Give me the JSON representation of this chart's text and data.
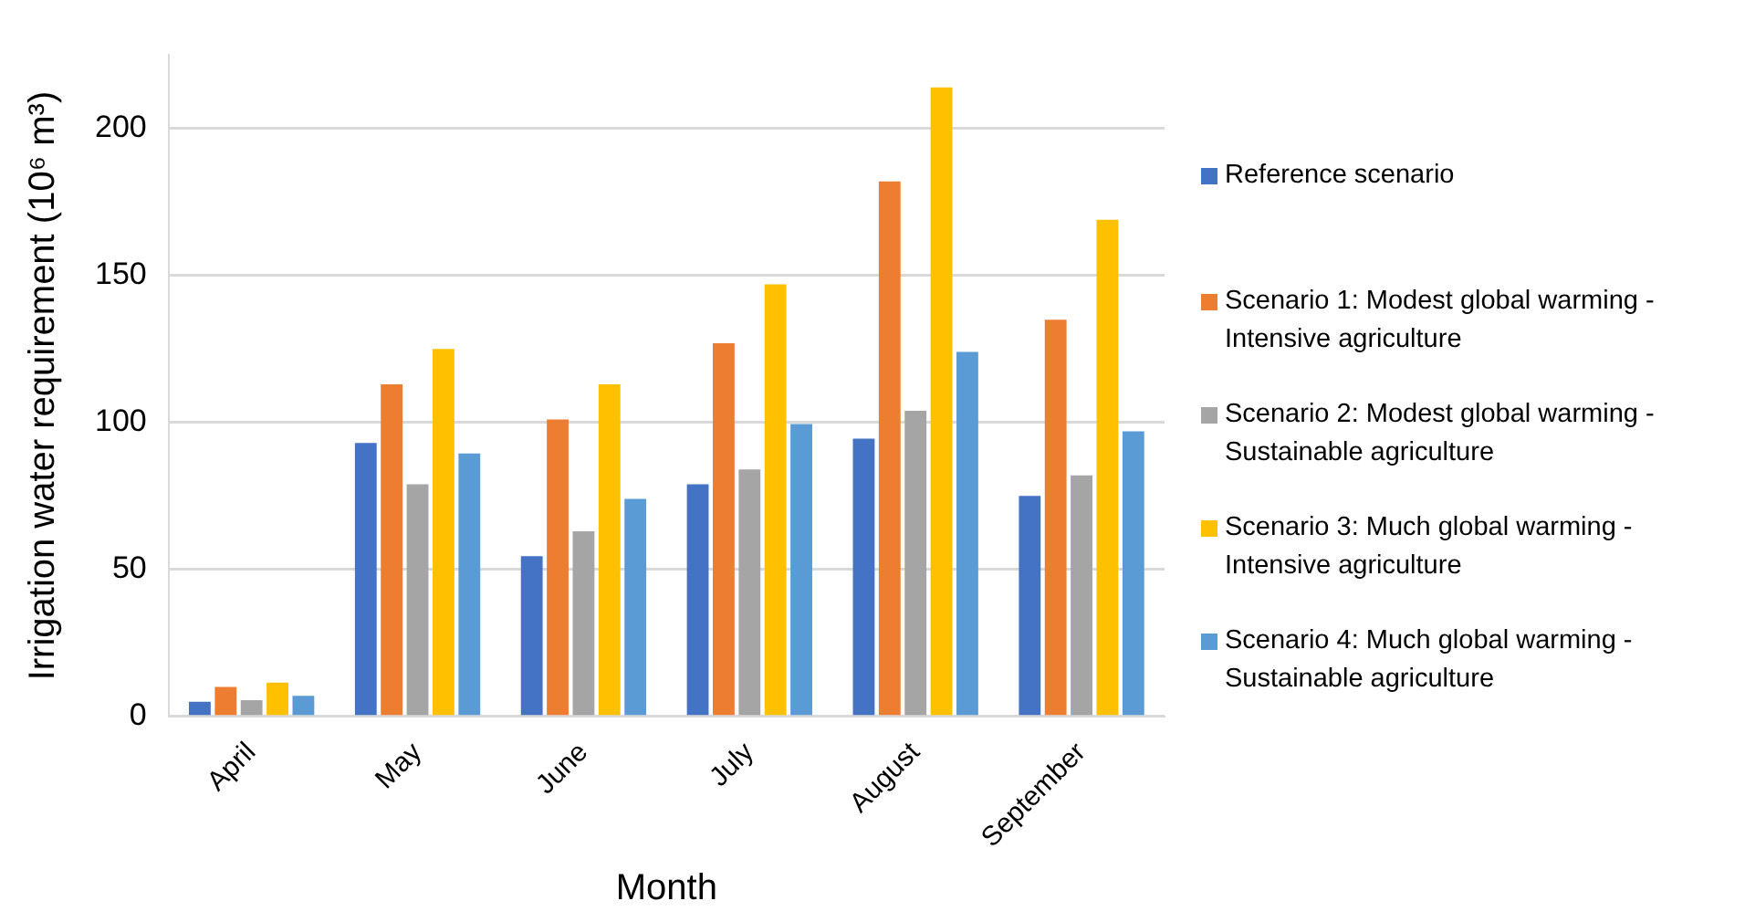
{
  "chart_data": {
    "type": "bar",
    "xlabel": "Month",
    "ylabel": "Irrigation water requirement (10⁶ m³)",
    "categories": [
      "April",
      "May",
      "June",
      "July",
      "August",
      "September"
    ],
    "series": [
      {
        "name": "Reference scenario",
        "color": "#4472c4",
        "values": [
          5,
          93,
          54.5,
          79,
          94.5,
          75
        ]
      },
      {
        "name": "Scenario 1: Modest global warming - Intensive agriculture",
        "color": "#ed7d31",
        "values": [
          10,
          113,
          101,
          127,
          182,
          135
        ]
      },
      {
        "name": "Scenario 2: Modest global warming - Sustainable agriculture",
        "color": "#a5a5a5",
        "values": [
          5.5,
          79,
          63,
          84,
          104,
          82
        ]
      },
      {
        "name": "Scenario 3: Much global warming - Intensive agriculture",
        "color": "#ffc000",
        "values": [
          11.5,
          125,
          113,
          147,
          214,
          169
        ]
      },
      {
        "name": "Scenario 4: Much global warming - Sustainable agriculture",
        "color": "#5b9bd5",
        "values": [
          7,
          89.5,
          74,
          99.5,
          124,
          97
        ]
      }
    ],
    "ylim": [
      0,
      225
    ],
    "yticks": [
      0,
      50,
      100,
      150,
      200
    ],
    "grid": "y",
    "legend": "right"
  }
}
